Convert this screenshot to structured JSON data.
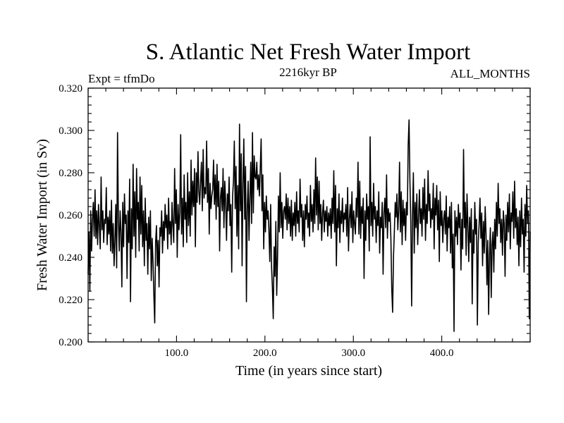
{
  "chart_data": {
    "type": "line",
    "title": "S. Atlantic Net Fresh Water Import",
    "subtitle_left": "Expt = tfmDo",
    "subtitle_center": "2216kyr BP",
    "subtitle_right": "ALL_MONTHS",
    "xlabel": "Time (in years since start)",
    "ylabel": "Fresh Water Import (in Sv)",
    "xlim": [
      0,
      500
    ],
    "ylim": [
      0.2,
      0.32
    ],
    "xticks": [
      100,
      200,
      300,
      400
    ],
    "xtick_labels": [
      "100.0",
      "200.0",
      "300.0",
      "400.0"
    ],
    "yticks": [
      0.2,
      0.22,
      0.24,
      0.26,
      0.28,
      0.3,
      0.32
    ],
    "ytick_labels": [
      "0.200",
      "0.220",
      "0.240",
      "0.260",
      "0.280",
      "0.300",
      "0.320"
    ],
    "grid": false,
    "series": [
      {
        "name": "Fresh Water Import",
        "color": "#000000",
        "x_start": 0,
        "x_step": 1,
        "values": [
          0.232,
          0.252,
          0.224,
          0.262,
          0.243,
          0.258,
          0.266,
          0.25,
          0.272,
          0.249,
          0.262,
          0.246,
          0.265,
          0.255,
          0.244,
          0.278,
          0.253,
          0.262,
          0.247,
          0.258,
          0.256,
          0.273,
          0.246,
          0.259,
          0.251,
          0.262,
          0.243,
          0.267,
          0.242,
          0.256,
          0.236,
          0.248,
          0.265,
          0.235,
          0.299,
          0.257,
          0.243,
          0.262,
          0.252,
          0.226,
          0.266,
          0.245,
          0.27,
          0.256,
          0.26,
          0.23,
          0.262,
          0.247,
          0.277,
          0.219,
          0.263,
          0.244,
          0.284,
          0.25,
          0.271,
          0.24,
          0.282,
          0.258,
          0.266,
          0.243,
          0.278,
          0.251,
          0.274,
          0.245,
          0.262,
          0.236,
          0.268,
          0.248,
          0.256,
          0.232,
          0.259,
          0.244,
          0.262,
          0.229,
          0.249,
          0.238,
          0.222,
          0.209,
          0.247,
          0.255,
          0.236,
          0.248,
          0.226,
          0.254,
          0.25,
          0.262,
          0.242,
          0.257,
          0.248,
          0.265,
          0.254,
          0.26,
          0.244,
          0.268,
          0.251,
          0.257,
          0.246,
          0.266,
          0.255,
          0.247,
          0.282,
          0.256,
          0.272,
          0.24,
          0.265,
          0.253,
          0.261,
          0.298,
          0.251,
          0.268,
          0.245,
          0.279,
          0.258,
          0.266,
          0.247,
          0.28,
          0.255,
          0.271,
          0.25,
          0.286,
          0.26,
          0.276,
          0.264,
          0.282,
          0.245,
          0.28,
          0.266,
          0.29,
          0.271,
          0.265,
          0.276,
          0.285,
          0.262,
          0.291,
          0.268,
          0.273,
          0.27,
          0.295,
          0.266,
          0.282,
          0.251,
          0.275,
          0.263,
          0.269,
          0.272,
          0.286,
          0.265,
          0.279,
          0.258,
          0.284,
          0.264,
          0.276,
          0.243,
          0.268,
          0.273,
          0.262,
          0.282,
          0.254,
          0.276,
          0.266,
          0.248,
          0.27,
          0.262,
          0.278,
          0.255,
          0.265,
          0.233,
          0.269,
          0.276,
          0.295,
          0.263,
          0.283,
          0.25,
          0.274,
          0.244,
          0.303,
          0.262,
          0.289,
          0.236,
          0.275,
          0.296,
          0.258,
          0.283,
          0.219,
          0.263,
          0.276,
          0.248,
          0.268,
          0.285,
          0.256,
          0.299,
          0.261,
          0.288,
          0.278,
          0.277,
          0.285,
          0.272,
          0.279,
          0.269,
          0.282,
          0.296,
          0.262,
          0.279,
          0.244,
          0.266,
          0.252,
          0.269,
          0.258,
          0.262,
          0.253,
          0.238,
          0.265,
          0.236,
          0.226,
          0.211,
          0.245,
          0.231,
          0.257,
          0.222,
          0.24,
          0.269,
          0.252,
          0.28,
          0.254,
          0.266,
          0.249,
          0.262,
          0.264,
          0.258,
          0.27,
          0.253,
          0.268,
          0.256,
          0.264,
          0.25,
          0.267,
          0.248,
          0.261,
          0.255,
          0.266,
          0.25,
          0.271,
          0.256,
          0.262,
          0.252,
          0.277,
          0.259,
          0.265,
          0.248,
          0.262,
          0.245,
          0.265,
          0.258,
          0.269,
          0.254,
          0.261,
          0.25,
          0.274,
          0.257,
          0.265,
          0.252,
          0.272,
          0.256,
          0.287,
          0.26,
          0.278,
          0.253,
          0.276,
          0.256,
          0.265,
          0.248,
          0.261,
          0.267,
          0.252,
          0.262,
          0.257,
          0.264,
          0.25,
          0.261,
          0.255,
          0.263,
          0.249,
          0.268,
          0.256,
          0.281,
          0.252,
          0.274,
          0.236,
          0.263,
          0.254,
          0.27,
          0.247,
          0.262,
          0.256,
          0.268,
          0.252,
          0.261,
          0.258,
          0.265,
          0.25,
          0.273,
          0.243,
          0.258,
          0.265,
          0.254,
          0.271,
          0.247,
          0.262,
          0.256,
          0.251,
          0.268,
          0.259,
          0.285,
          0.251,
          0.276,
          0.249,
          0.264,
          0.256,
          0.268,
          0.23,
          0.262,
          0.248,
          0.27,
          0.258,
          0.264,
          0.243,
          0.297,
          0.255,
          0.266,
          0.25,
          0.275,
          0.258,
          0.264,
          0.247,
          0.262,
          0.255,
          0.271,
          0.242,
          0.259,
          0.254,
          0.266,
          0.232,
          0.261,
          0.268,
          0.254,
          0.279,
          0.249,
          0.263,
          0.257,
          0.261,
          0.249,
          0.225,
          0.214,
          0.24,
          0.252,
          0.266,
          0.259,
          0.27,
          0.253,
          0.262,
          0.285,
          0.252,
          0.271,
          0.246,
          0.267,
          0.255,
          0.263,
          0.248,
          0.266,
          0.26,
          0.293,
          0.305,
          0.276,
          0.257,
          0.217,
          0.26,
          0.28,
          0.242,
          0.266,
          0.254,
          0.27,
          0.246,
          0.259,
          0.272,
          0.256,
          0.263,
          0.25,
          0.273,
          0.258,
          0.277,
          0.248,
          0.265,
          0.256,
          0.281,
          0.262,
          0.27,
          0.254,
          0.263,
          0.258,
          0.275,
          0.244,
          0.268,
          0.26,
          0.274,
          0.253,
          0.267,
          0.238,
          0.271,
          0.255,
          0.262,
          0.247,
          0.258,
          0.262,
          0.251,
          0.269,
          0.243,
          0.259,
          0.254,
          0.264,
          0.242,
          0.266,
          0.235,
          0.251,
          0.205,
          0.262,
          0.25,
          0.259,
          0.246,
          0.265,
          0.254,
          0.261,
          0.234,
          0.258,
          0.244,
          0.291,
          0.254,
          0.266,
          0.241,
          0.27,
          0.255,
          0.238,
          0.259,
          0.247,
          0.263,
          0.218,
          0.253,
          0.242,
          0.266,
          0.251,
          0.258,
          0.208,
          0.247,
          0.256,
          0.268,
          0.249,
          0.261,
          0.236,
          0.257,
          0.242,
          0.264,
          0.251,
          0.227,
          0.248,
          0.213,
          0.241,
          0.254,
          0.221,
          0.246,
          0.252,
          0.233,
          0.258,
          0.244,
          0.266,
          0.25,
          0.275,
          0.256,
          0.263,
          0.247,
          0.258,
          0.241,
          0.262,
          0.256,
          0.231,
          0.26,
          0.248,
          0.266,
          0.252,
          0.27,
          0.244,
          0.261,
          0.257,
          0.271,
          0.249,
          0.276,
          0.254,
          0.263,
          0.246,
          0.259,
          0.236,
          0.262,
          0.245,
          0.268,
          0.251,
          0.258,
          0.233,
          0.265,
          0.25,
          0.274,
          0.256,
          0.262,
          0.211,
          0.252
        ]
      }
    ]
  }
}
